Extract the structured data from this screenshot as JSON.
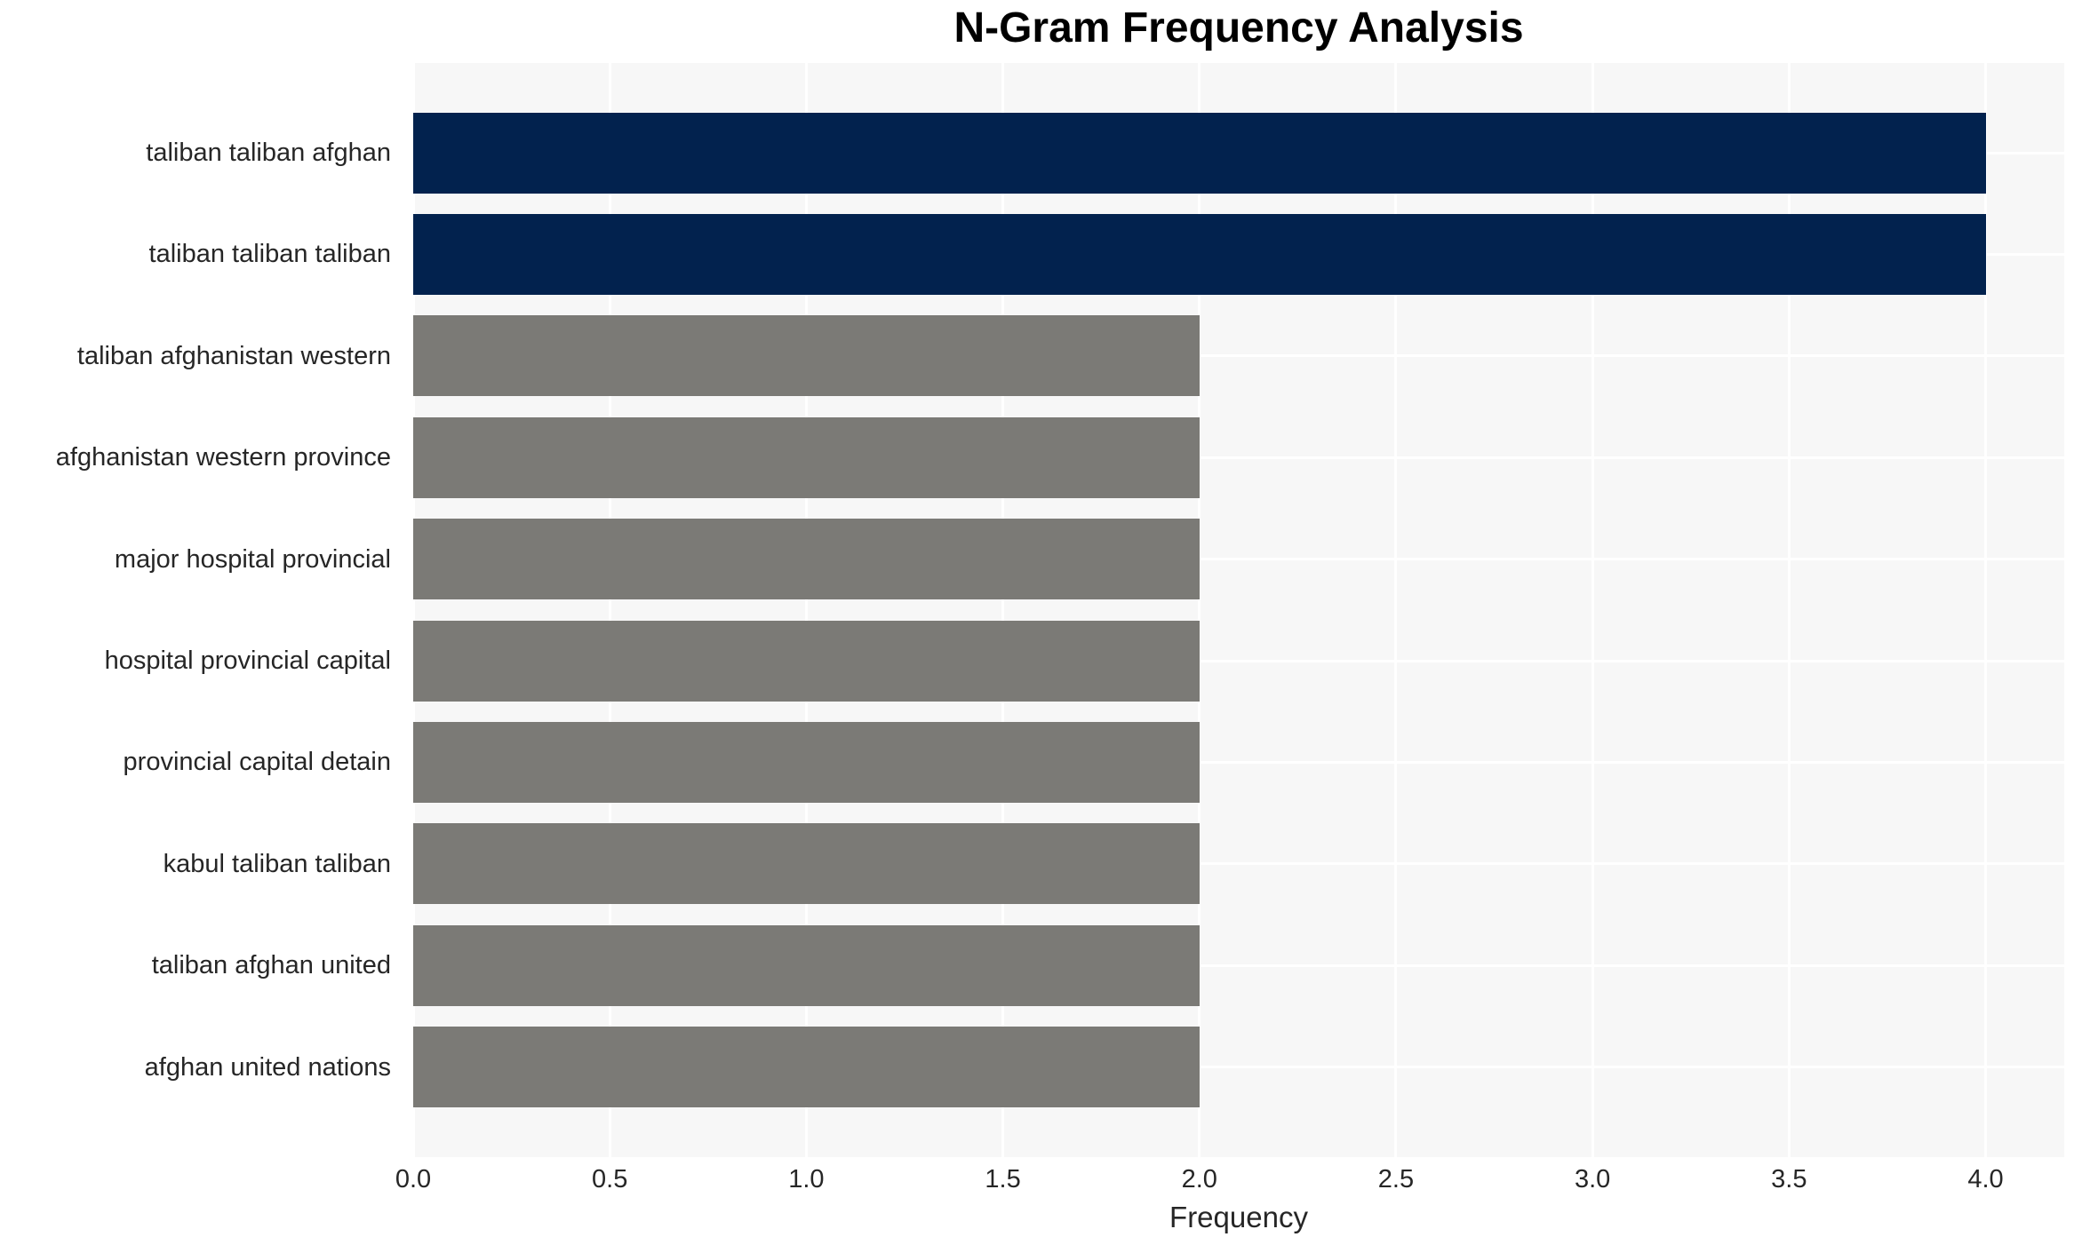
{
  "chart_data": {
    "type": "bar",
    "orientation": "horizontal",
    "title": "N-Gram Frequency Analysis",
    "categories": [
      "taliban taliban afghan",
      "taliban taliban taliban",
      "taliban afghanistan western",
      "afghanistan western province",
      "major hospital provincial",
      "hospital provincial capital",
      "provincial capital detain",
      "kabul taliban taliban",
      "taliban afghan united",
      "afghan united nations"
    ],
    "values": [
      4,
      4,
      2,
      2,
      2,
      2,
      2,
      2,
      2,
      2
    ],
    "bar_colors": [
      "#02224e",
      "#02224e",
      "#7b7a76",
      "#7b7a76",
      "#7b7a76",
      "#7b7a76",
      "#7b7a76",
      "#7b7a76",
      "#7b7a76",
      "#7b7a76"
    ],
    "xlabel": "Frequency",
    "ylabel": "",
    "xtick_labels": [
      "0.0",
      "0.5",
      "1.0",
      "1.5",
      "2.0",
      "2.5",
      "3.0",
      "3.5",
      "4.0"
    ],
    "xlim": [
      0,
      4.2
    ],
    "grid": true,
    "legend": false,
    "colors": {
      "highlight_bar": "#02224e",
      "default_bar": "#7b7a76",
      "plot_background": "#f7f7f7",
      "grid_line": "#ffffff",
      "tick_text": "#262626",
      "title_text": "#000000"
    }
  }
}
